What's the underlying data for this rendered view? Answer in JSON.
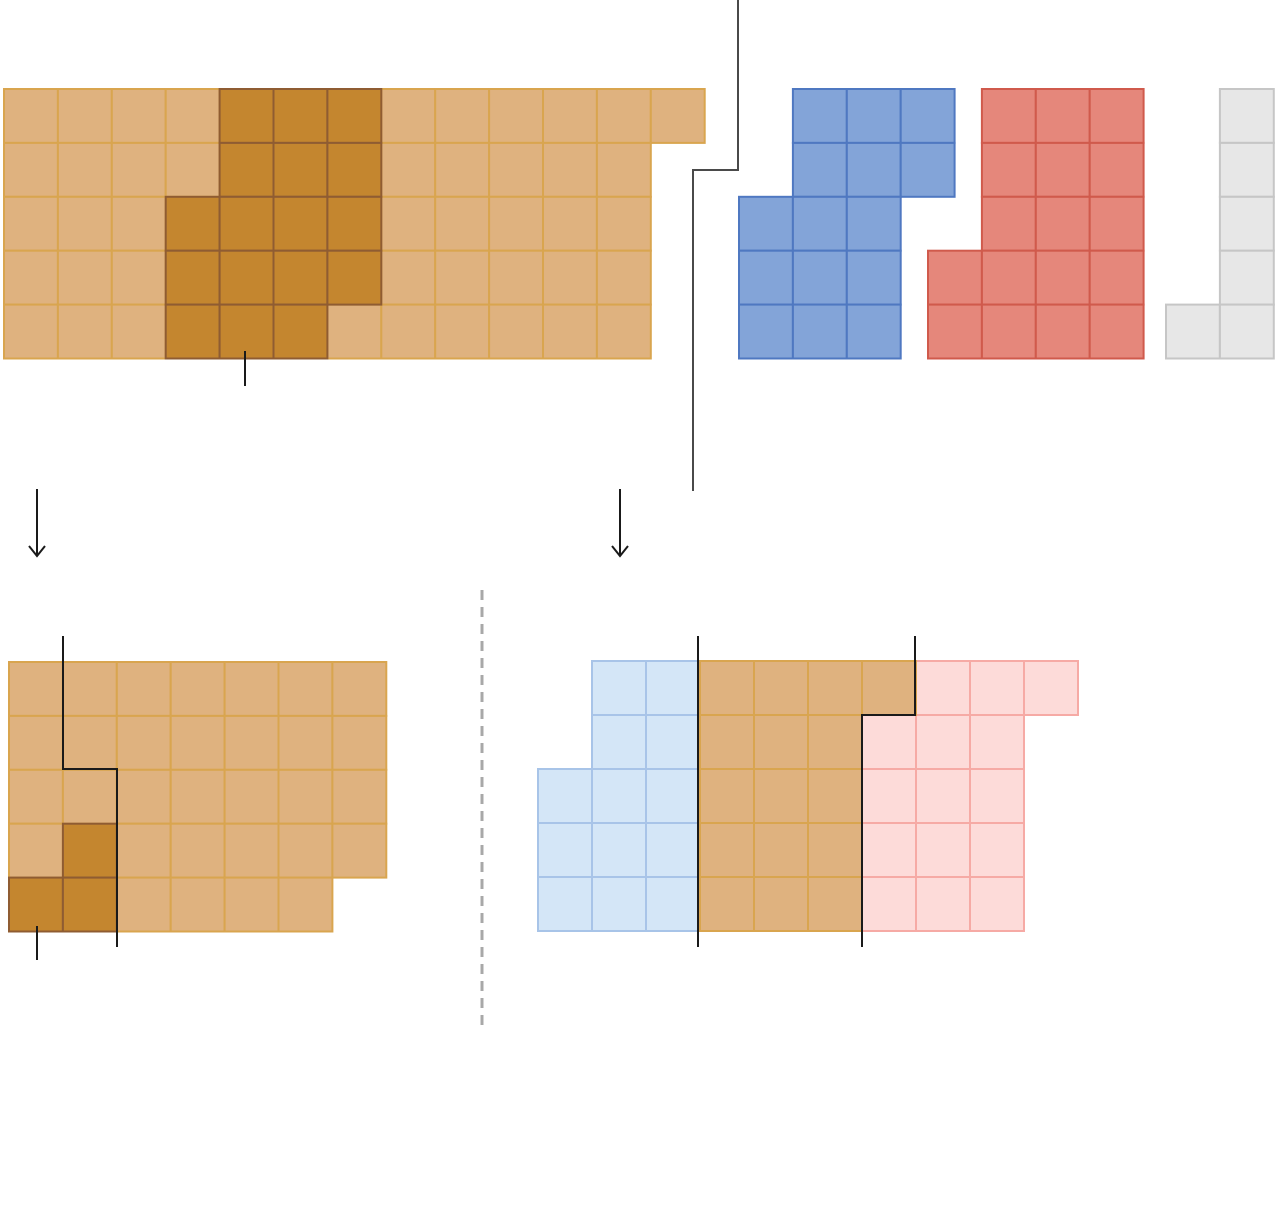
{
  "colors": {
    "tan_fill": "#dfb27f",
    "tan_stroke": "#d9a54f",
    "dark_fill": "#c4862f",
    "dark_stroke": "#8f5c32",
    "blue_fill": "#83a4d8",
    "blue_stroke": "#4f78c1",
    "red_fill": "#e5877b",
    "red_stroke": "#d05a4c",
    "gray_fill": "#e7e7e7",
    "gray_stroke": "#c6c6c6",
    "light_blue_fill": "#d4e6f7",
    "light_blue_stroke": "#a8c4e8",
    "light_red_fill": "#fddbd9",
    "light_red_stroke": "#f6aaa5",
    "line": "#1a1a1a",
    "connector": "#4a4a4a",
    "divider": "#a8a8a8"
  },
  "panels": {
    "top_grid": {
      "row_lengths": [
        13,
        12,
        12,
        12,
        12
      ],
      "highlight_rows": [
        [
          4,
          6
        ],
        [
          4,
          6
        ],
        [
          3,
          6
        ],
        [
          3,
          6
        ],
        [
          3,
          5
        ]
      ]
    },
    "blue_piece": {
      "rows": [
        [
          1,
          3
        ],
        [
          1,
          3
        ],
        [
          0,
          2
        ],
        [
          0,
          2
        ],
        [
          0,
          2
        ]
      ]
    },
    "red_piece": {
      "rows": [
        [
          1,
          3
        ],
        [
          1,
          3
        ],
        [
          1,
          3
        ],
        [
          0,
          3
        ],
        [
          0,
          3
        ]
      ]
    },
    "gray_piece": {
      "rows": [
        [
          1,
          1
        ],
        [
          1,
          1
        ],
        [
          1,
          1
        ],
        [
          1,
          1
        ],
        [
          0,
          1
        ]
      ]
    },
    "bottom_left_grid": {
      "row_lengths": [
        7,
        7,
        7,
        7,
        6
      ],
      "highlight_cells": [
        [
          3,
          1
        ],
        [
          4,
          0
        ],
        [
          4,
          1
        ]
      ]
    },
    "bottom_right_grid": {
      "rows": [
        [
          {
            "type": "blue",
            "from": 1,
            "to": 2
          },
          {
            "type": "tan",
            "from": 3,
            "to": 6
          },
          {
            "type": "red",
            "from": 7,
            "to": 9
          }
        ],
        [
          {
            "type": "blue",
            "from": 1,
            "to": 2
          },
          {
            "type": "tan",
            "from": 3,
            "to": 5
          },
          {
            "type": "red",
            "from": 6,
            "to": 8
          }
        ],
        [
          {
            "type": "blue",
            "from": 0,
            "to": 2
          },
          {
            "type": "tan",
            "from": 3,
            "to": 5
          },
          {
            "type": "red",
            "from": 6,
            "to": 8
          }
        ],
        [
          {
            "type": "blue",
            "from": 0,
            "to": 2
          },
          {
            "type": "tan",
            "from": 3,
            "to": 5
          },
          {
            "type": "red",
            "from": 6,
            "to": 8
          }
        ],
        [
          {
            "type": "blue",
            "from": 0,
            "to": 2
          },
          {
            "type": "tan",
            "from": 3,
            "to": 5
          },
          {
            "type": "red",
            "from": 6,
            "to": 8
          }
        ]
      ]
    }
  }
}
